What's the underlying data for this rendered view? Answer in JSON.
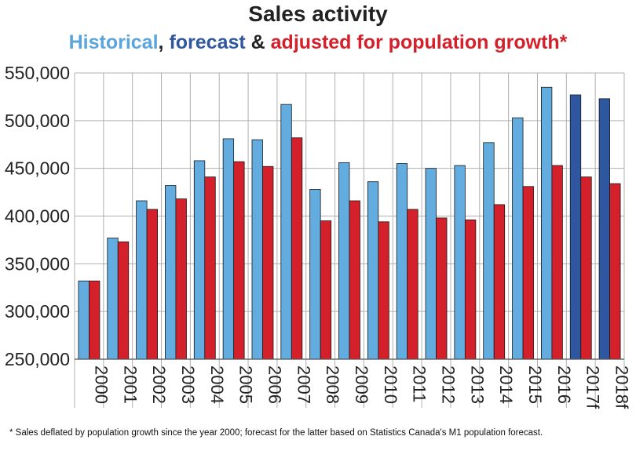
{
  "chart_data": {
    "type": "bar",
    "title": "Sales activity",
    "subtitle_parts": [
      {
        "text": "Historical",
        "color": "#5aa5dc"
      },
      {
        "text": ", ",
        "color": "#222222"
      },
      {
        "text": "forecast",
        "color": "#2e57a0"
      },
      {
        "text": " & ",
        "color": "#222222"
      },
      {
        "text": "adjusted for population growth*",
        "color": "#d3202a"
      }
    ],
    "categories": [
      "2000",
      "2001",
      "2002",
      "2003",
      "2004",
      "2005",
      "2006",
      "2007",
      "2008",
      "2009",
      "2010",
      "2011",
      "2012",
      "2013",
      "2014",
      "2015",
      "2016",
      "2017f",
      "2018f"
    ],
    "series": [
      {
        "name": "Sales",
        "values": [
          332000,
          377000,
          416000,
          432000,
          458000,
          481000,
          480000,
          517000,
          428000,
          456000,
          436000,
          455000,
          450000,
          453000,
          477000,
          503000,
          535000,
          527000,
          523000
        ],
        "colors": [
          "#62ace0",
          "#62ace0",
          "#62ace0",
          "#62ace0",
          "#62ace0",
          "#62ace0",
          "#62ace0",
          "#62ace0",
          "#62ace0",
          "#62ace0",
          "#62ace0",
          "#62ace0",
          "#62ace0",
          "#62ace0",
          "#62ace0",
          "#62ace0",
          "#62ace0",
          "#2e57a0",
          "#2e57a0"
        ]
      },
      {
        "name": "Adjusted for population growth",
        "values": [
          332000,
          373000,
          407000,
          418000,
          441000,
          457000,
          452000,
          482000,
          395000,
          416000,
          394000,
          407000,
          398000,
          396000,
          412000,
          431000,
          453000,
          441000,
          434000
        ],
        "colors": [
          "#d3202a"
        ]
      }
    ],
    "yticks": [
      "250,000",
      "300,000",
      "350,000",
      "400,000",
      "450,000",
      "500,000",
      "550,000"
    ],
    "ylim": [
      250000,
      550000
    ],
    "grid": true,
    "footnote": "* Sales deflated by population growth since the year 2000; forecast for the latter based on Statistics Canada's M1 population forecast."
  }
}
